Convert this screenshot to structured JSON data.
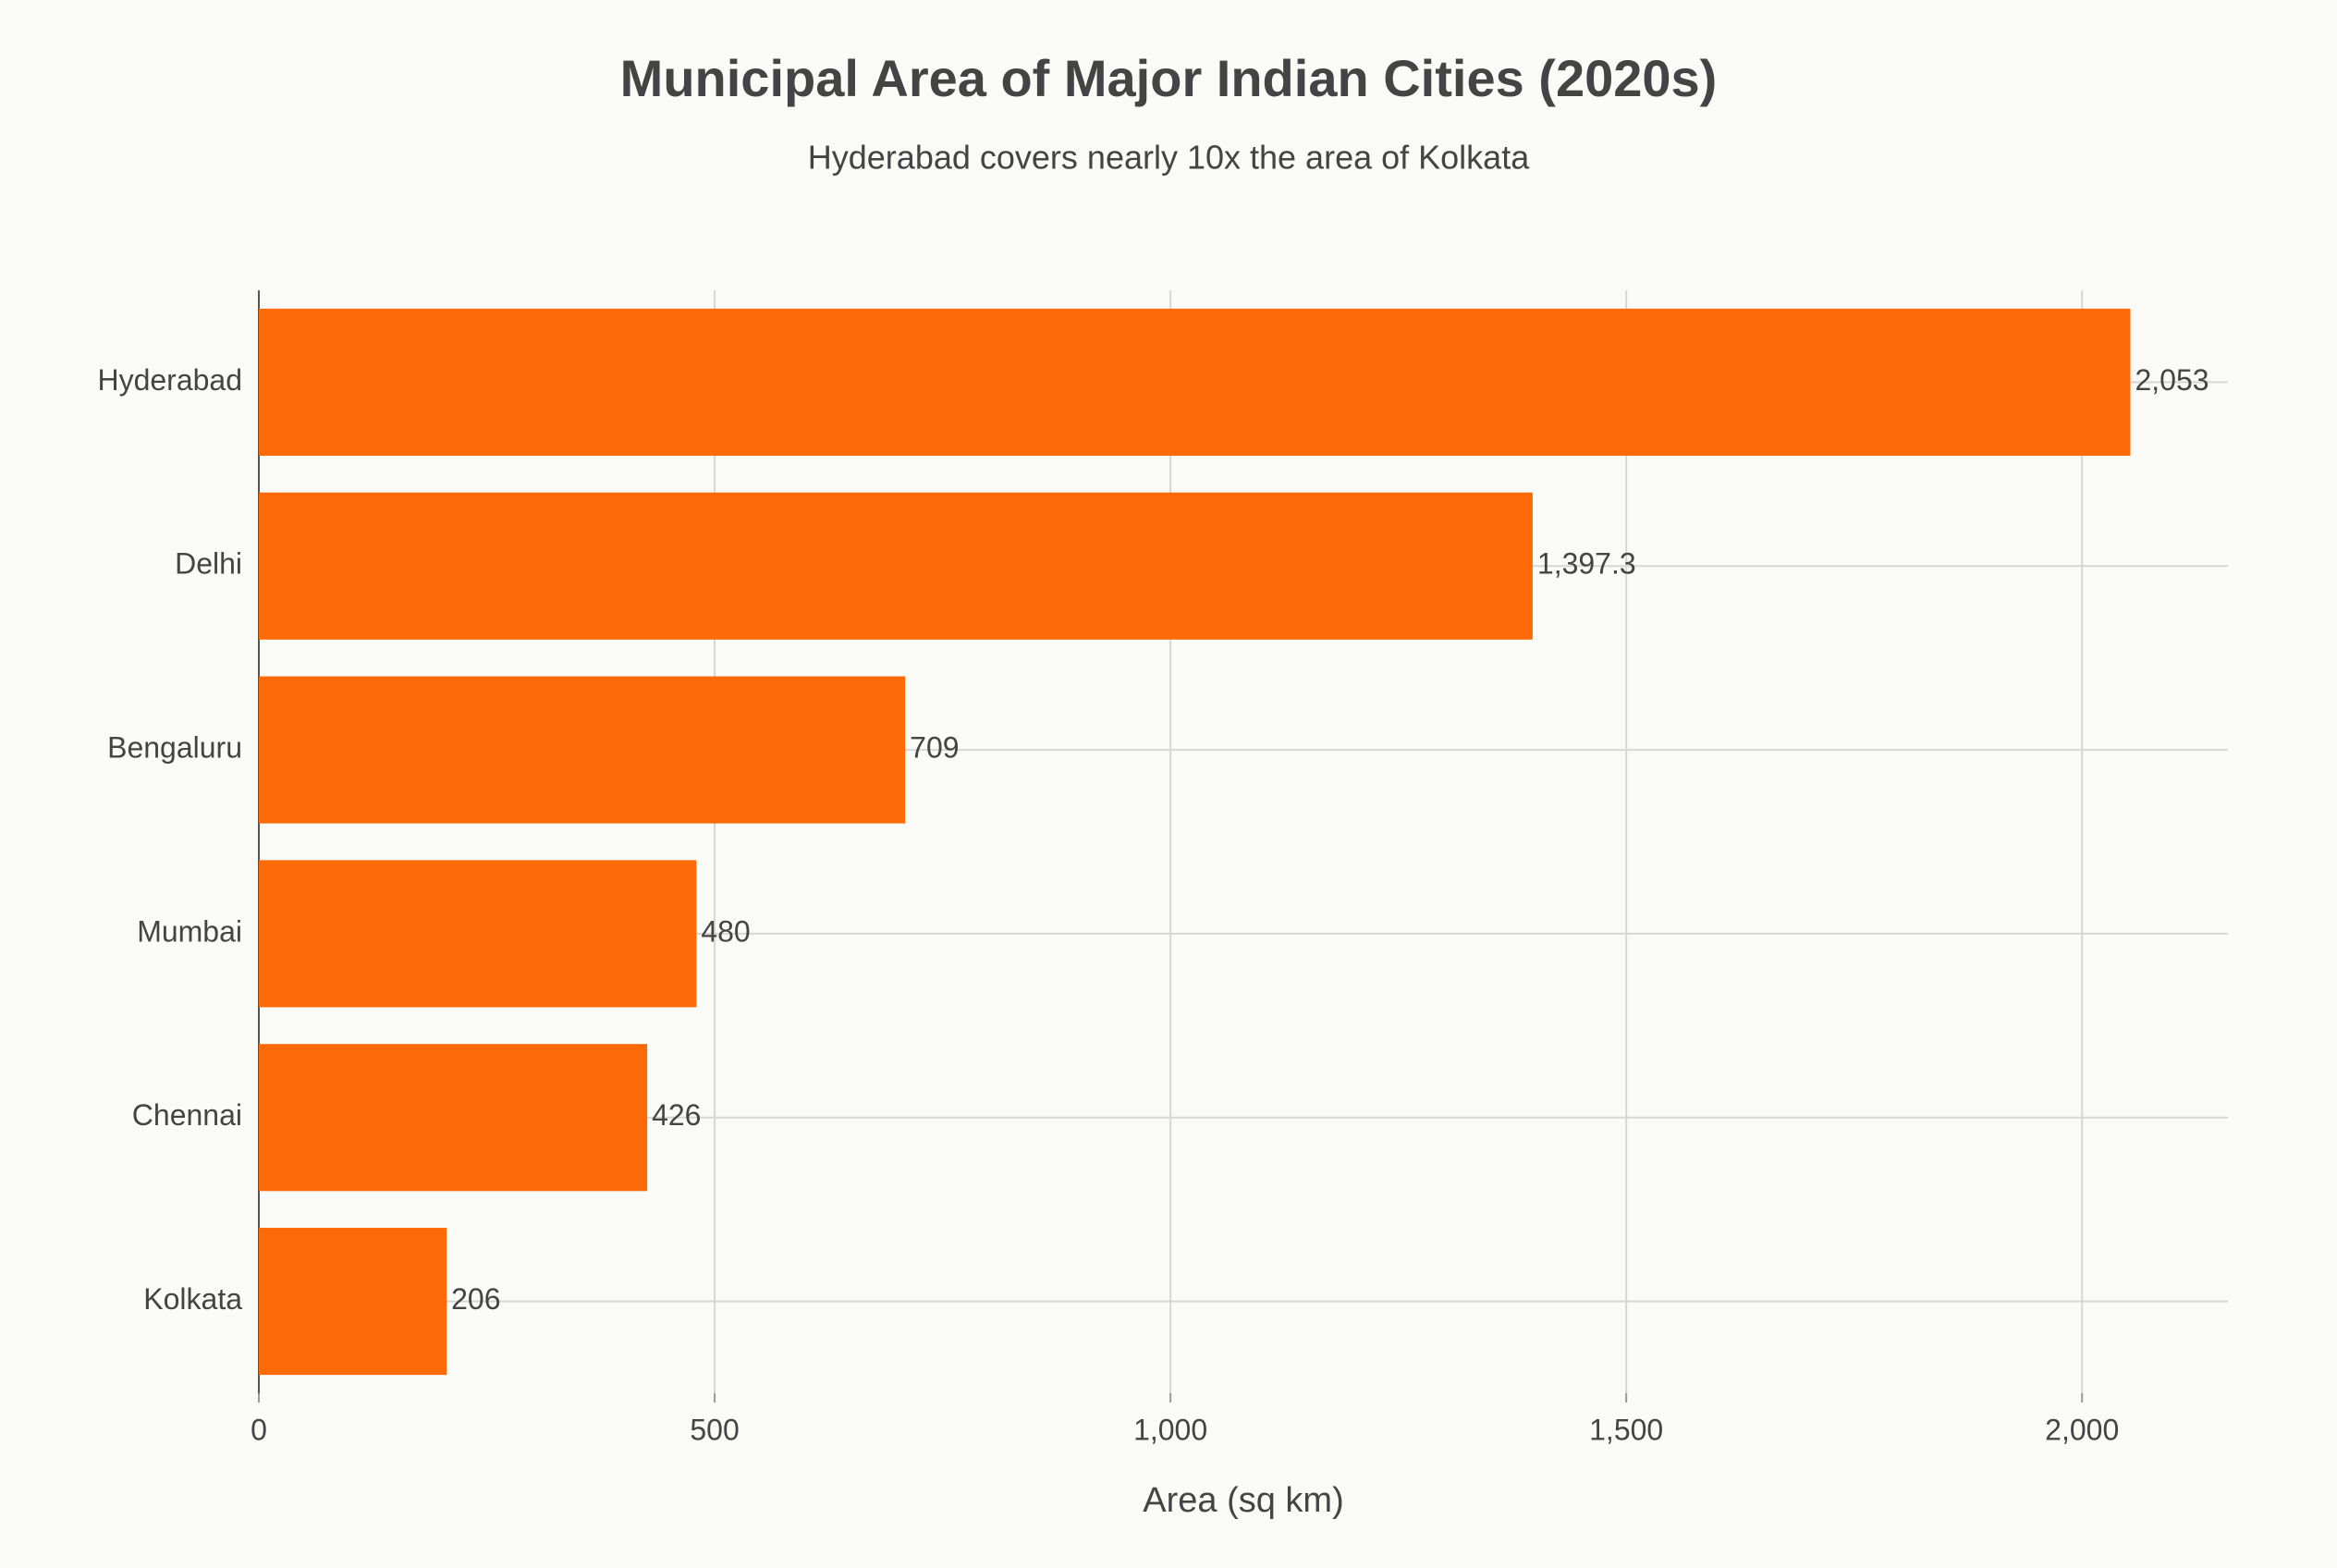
{
  "chart_data": {
    "type": "bar",
    "orientation": "horizontal",
    "title": "Municipal Area of Major Indian Cities (2020s)",
    "subtitle": "Hyderabad covers nearly 10x the area of Kolkata",
    "x_label": "Area (sq km)",
    "categories": [
      "Hyderabad",
      "Delhi",
      "Bengaluru",
      "Mumbai",
      "Chennai",
      "Kolkata"
    ],
    "values": [
      2053,
      1397.3,
      709,
      480,
      426,
      206
    ],
    "value_labels": [
      "2,053",
      "1,397.3",
      "709",
      "480",
      "426",
      "206"
    ],
    "color": "#fb6a07",
    "xlim": [
      0,
      2160
    ],
    "xticks": [
      0,
      500,
      {
        "value": 1000,
        "label": "1,000"
      },
      {
        "value": 1500,
        "label": "1,500"
      },
      {
        "value": 2000,
        "label": "2,000"
      }
    ],
    "grid": true
  }
}
